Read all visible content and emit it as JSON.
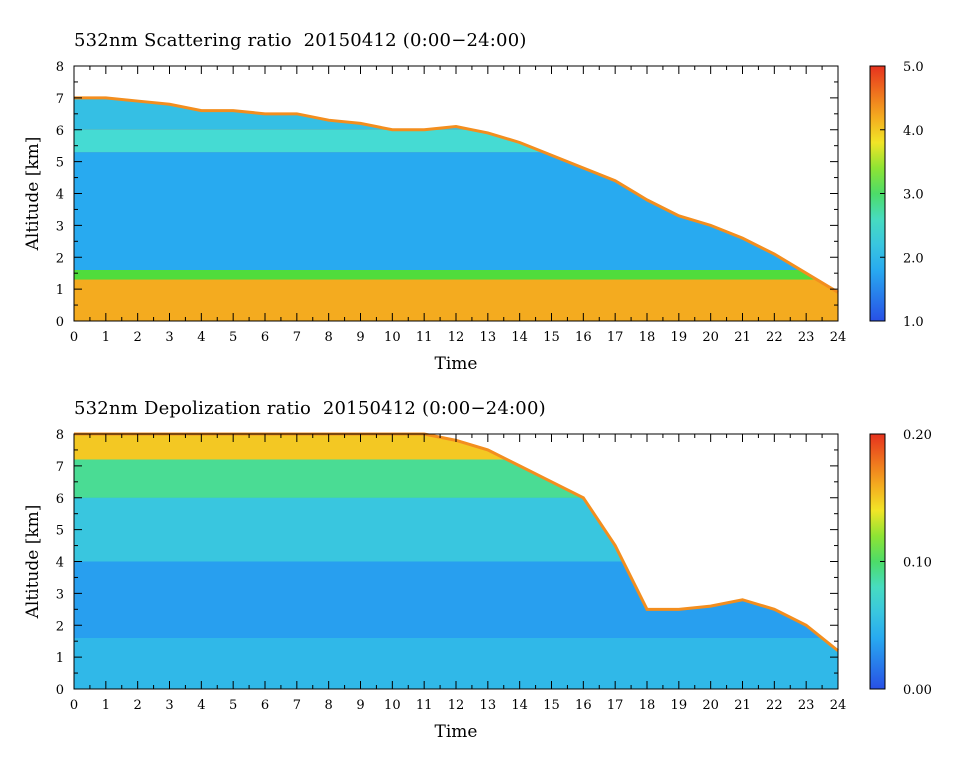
{
  "chart_data": [
    {
      "type": "heatmap",
      "title": "532nm Scattering ratio  20150412 (0:00−24:00)",
      "xlabel": "Time",
      "ylabel": "Altitude [km]",
      "xlim": [
        0,
        24
      ],
      "ylim": [
        0,
        8
      ],
      "x_ticks": [
        "0",
        "1",
        "2",
        "3",
        "4",
        "5",
        "6",
        "7",
        "8",
        "9",
        "10",
        "11",
        "12",
        "13",
        "14",
        "15",
        "16",
        "17",
        "18",
        "19",
        "20",
        "21",
        "22",
        "23",
        "24"
      ],
      "y_ticks": [
        "0",
        "1",
        "2",
        "3",
        "4",
        "5",
        "6",
        "7",
        "8"
      ],
      "colorbar": {
        "min": 1.0,
        "max": 5.0,
        "ticks": [
          "1.0",
          "2.0",
          "3.0",
          "4.0",
          "5.0"
        ]
      },
      "cloud_top_km": [
        7.0,
        7.0,
        6.9,
        6.8,
        6.6,
        6.6,
        6.5,
        6.5,
        6.3,
        6.2,
        6.0,
        6.0,
        6.1,
        5.9,
        5.6,
        5.2,
        4.8,
        4.4,
        3.8,
        3.3,
        3.0,
        2.6,
        2.1,
        1.5,
        0.9
      ],
      "layers": [
        {
          "bottom_km": 0.2,
          "top_km": 1.3,
          "value": 4.2
        },
        {
          "bottom_km": 1.3,
          "top_km": 1.6,
          "value": 3.2
        },
        {
          "bottom_km": 1.6,
          "top_km": 5.3,
          "value": 1.8
        },
        {
          "bottom_km": 5.3,
          "top_km": 6.0,
          "value": 2.5
        },
        {
          "bottom_km": 6.0,
          "top_km": 7.0,
          "value": 2.1
        }
      ]
    },
    {
      "type": "heatmap",
      "title": "532nm Depolization ratio  20150412 (0:00−24:00)",
      "xlabel": "Time",
      "ylabel": "Altitude [km]",
      "xlim": [
        0,
        24
      ],
      "ylim": [
        0,
        8
      ],
      "x_ticks": [
        "0",
        "1",
        "2",
        "3",
        "4",
        "5",
        "6",
        "7",
        "8",
        "9",
        "10",
        "11",
        "12",
        "13",
        "14",
        "15",
        "16",
        "17",
        "18",
        "19",
        "20",
        "21",
        "22",
        "23",
        "24"
      ],
      "y_ticks": [
        "0",
        "1",
        "2",
        "3",
        "4",
        "5",
        "6",
        "7",
        "8"
      ],
      "colorbar": {
        "min": 0.0,
        "max": 0.2,
        "ticks": [
          "0.00",
          "0.10",
          "0.20"
        ]
      },
      "cloud_top_km": [
        8.0,
        8.0,
        8.0,
        8.0,
        8.0,
        8.0,
        8.0,
        8.0,
        8.0,
        8.0,
        8.0,
        8.0,
        7.8,
        7.5,
        7.0,
        6.5,
        6.0,
        4.5,
        2.5,
        2.5,
        2.6,
        2.8,
        2.5,
        2.0,
        1.2
      ],
      "layers": [
        {
          "bottom_km": 0.15,
          "top_km": 1.6,
          "value": 0.05
        },
        {
          "bottom_km": 1.6,
          "top_km": 4.0,
          "value": 0.035
        },
        {
          "bottom_km": 4.0,
          "top_km": 6.0,
          "value": 0.06
        },
        {
          "bottom_km": 6.0,
          "top_km": 7.2,
          "value": 0.09
        },
        {
          "bottom_km": 7.2,
          "top_km": 8.0,
          "value": 0.15
        }
      ]
    }
  ]
}
